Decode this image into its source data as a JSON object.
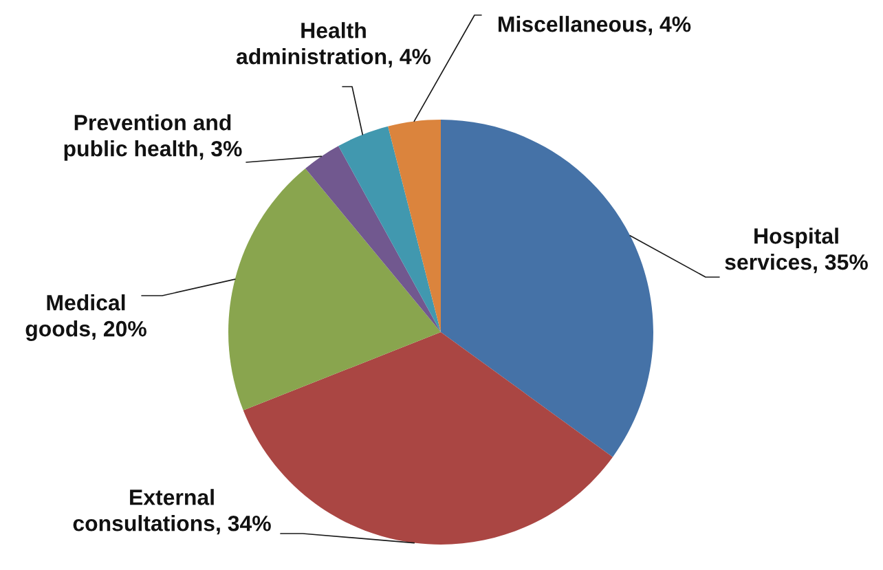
{
  "chart_data": {
    "type": "pie",
    "categories": [
      "Hospital services",
      "External consultations",
      "Medical goods",
      "Prevention and public health",
      "Health administration",
      "Miscellaneous"
    ],
    "values": [
      35,
      34,
      20,
      3,
      4,
      4
    ],
    "colors": [
      "#4572a7",
      "#aa4643",
      "#89a54e",
      "#71588f",
      "#4198af",
      "#db843d"
    ],
    "value_labels": [
      "35%",
      "34%",
      "20%",
      "3%",
      "4%",
      "4%"
    ]
  }
}
